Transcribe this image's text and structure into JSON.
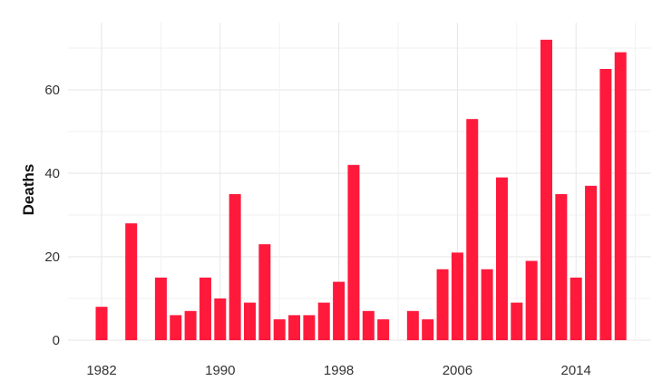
{
  "chart_data": {
    "type": "bar",
    "title": "",
    "xlabel": "",
    "ylabel": "Deaths",
    "x": [
      1982,
      1984,
      1986,
      1987,
      1988,
      1989,
      1990,
      1991,
      1992,
      1993,
      1994,
      1995,
      1996,
      1997,
      1998,
      1999,
      2000,
      2001,
      2003,
      2004,
      2005,
      2006,
      2007,
      2008,
      2009,
      2010,
      2011,
      2012,
      2013,
      2014,
      2015,
      2016,
      2017
    ],
    "values": [
      8,
      28,
      15,
      6,
      7,
      15,
      10,
      35,
      9,
      23,
      5,
      6,
      6,
      9,
      14,
      42,
      7,
      5,
      7,
      5,
      17,
      21,
      53,
      17,
      39,
      9,
      19,
      72,
      35,
      15,
      37,
      65,
      69
    ],
    "xlim": [
      1981,
      2018
    ],
    "ylim": [
      0,
      75
    ],
    "x_ticks": [
      1982,
      1990,
      1998,
      2006,
      2014
    ],
    "y_ticks": [
      0,
      20,
      40,
      60
    ],
    "bar_color": "#FF1A3C",
    "grid": true,
    "legend": "none"
  }
}
